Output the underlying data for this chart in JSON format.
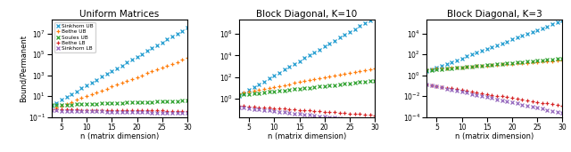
{
  "titles": [
    "Uniform Matrices",
    "Block Diagonal, K=10",
    "Block Diagonal, K=3"
  ],
  "xlabel": "n (matrix dimension)",
  "ylabel": "Bound/Permanent",
  "legend_labels": [
    "Sinkhorn UB",
    "Bethe UB",
    "Soules UB",
    "Bethe LB",
    "Sinkhorn LB"
  ],
  "series_colors": [
    "#1f9bcf",
    "#ff7f0e",
    "#2ca02c",
    "#d62728",
    "#9467bd"
  ],
  "series_markers": [
    "x",
    "+",
    "x",
    "+",
    "x"
  ],
  "panels": [
    {
      "title": "Uniform Matrices",
      "ylim": [
        0.1,
        200000000.0
      ],
      "series": [
        {
          "base": 0.18,
          "exp_factor": 0.635
        },
        {
          "base": 0.15,
          "exp_factor": 0.42
        },
        {
          "base": 1.2,
          "exp_factor": 0.038
        },
        {
          "base": 0.55,
          "exp_factor": -0.012
        },
        {
          "base": 0.45,
          "exp_factor": -0.022
        }
      ]
    },
    {
      "title": "Block Diagonal, K=10",
      "ylim": [
        0.02,
        20000000.0
      ],
      "series": [
        {
          "base": 0.28,
          "exp_factor": 0.62
        },
        {
          "base": 1.8,
          "exp_factor": 0.195
        },
        {
          "base": 1.5,
          "exp_factor": 0.115
        },
        {
          "base": 0.28,
          "exp_factor": -0.075
        },
        {
          "base": 0.22,
          "exp_factor": -0.115
        }
      ]
    },
    {
      "title": "Block Diagonal, K=3",
      "ylim": [
        0.0001,
        200000.0
      ],
      "series": [
        {
          "base": 0.65,
          "exp_factor": 0.415
        },
        {
          "base": 2.8,
          "exp_factor": 0.075
        },
        {
          "base": 2.2,
          "exp_factor": 0.098
        },
        {
          "base": 0.22,
          "exp_factor": -0.175
        },
        {
          "base": 0.28,
          "exp_factor": -0.235
        }
      ]
    }
  ]
}
